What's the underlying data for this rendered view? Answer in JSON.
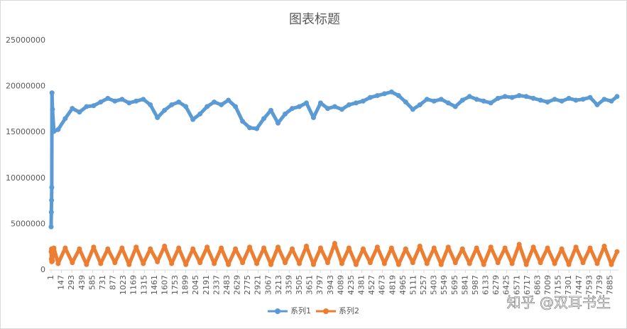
{
  "chart_data": {
    "type": "line",
    "title": "图表标题",
    "watermark": "知乎 @双耳书生",
    "legend": "bottom",
    "xlim": [
      1,
      8000
    ],
    "xticks": [
      1,
      147,
      293,
      439,
      585,
      731,
      877,
      1023,
      1169,
      1315,
      1461,
      1607,
      1753,
      1899,
      2045,
      2191,
      2337,
      2483,
      2629,
      2775,
      2921,
      3067,
      3213,
      3359,
      3505,
      3651,
      3797,
      3943,
      4089,
      4235,
      4381,
      4527,
      4673,
      4819,
      4965,
      5111,
      5257,
      5403,
      5549,
      5695,
      5841,
      5987,
      6133,
      6279,
      6425,
      6571,
      6717,
      6863,
      7009,
      7155,
      7301,
      7447,
      7593,
      7739,
      7885
    ],
    "ylim": [
      0,
      25000000
    ],
    "yticks": [
      0,
      5000000,
      10000000,
      15000000,
      20000000,
      25000000
    ],
    "x": [
      1,
      4,
      7,
      10,
      13,
      20,
      40,
      100,
      200,
      300,
      400,
      500,
      600,
      700,
      800,
      900,
      1000,
      1100,
      1200,
      1300,
      1400,
      1500,
      1600,
      1700,
      1800,
      1900,
      2000,
      2100,
      2200,
      2300,
      2400,
      2500,
      2600,
      2700,
      2800,
      2900,
      3000,
      3100,
      3200,
      3300,
      3400,
      3500,
      3600,
      3700,
      3800,
      3900,
      4000,
      4100,
      4200,
      4300,
      4400,
      4500,
      4600,
      4700,
      4800,
      4900,
      5000,
      5100,
      5200,
      5300,
      5400,
      5500,
      5600,
      5700,
      5800,
      5900,
      6000,
      6100,
      6200,
      6300,
      6400,
      6500,
      6600,
      6700,
      6800,
      6900,
      7000,
      7100,
      7200,
      7300,
      7400,
      7500,
      7600,
      7700,
      7800,
      7900,
      7980
    ],
    "series": [
      {
        "name": "系列1",
        "color": "#5b9bd5",
        "values": [
          4700000,
          6300000,
          7600000,
          9000000,
          19300000,
          17500000,
          15100000,
          15300000,
          16500000,
          17600000,
          17200000,
          17800000,
          17900000,
          18300000,
          18700000,
          18400000,
          18600000,
          18200000,
          18400000,
          18600000,
          18000000,
          16600000,
          17400000,
          18000000,
          18300000,
          17800000,
          16400000,
          17000000,
          17800000,
          18300000,
          18000000,
          18500000,
          17800000,
          16200000,
          15500000,
          15400000,
          16500000,
          17400000,
          16000000,
          17000000,
          17600000,
          17800000,
          18200000,
          16600000,
          18200000,
          17600000,
          17800000,
          17500000,
          18000000,
          18200000,
          18400000,
          18800000,
          19000000,
          19200000,
          19400000,
          19000000,
          18300000,
          17500000,
          18000000,
          18600000,
          18400000,
          18600000,
          18200000,
          17800000,
          18500000,
          18900000,
          18600000,
          18400000,
          18200000,
          18700000,
          18900000,
          18800000,
          19000000,
          18900000,
          18700000,
          18500000,
          18300000,
          18600000,
          18400000,
          18700000,
          18500000,
          18600000,
          18800000,
          18000000,
          18600000,
          18400000,
          18900000
        ]
      },
      {
        "name": "系列2",
        "color": "#ed7d31",
        "values": [
          2000000,
          1200000,
          2300000,
          900000,
          2100000,
          1000000,
          2400000,
          700000,
          2400000,
          800000,
          2300000,
          600000,
          2500000,
          700000,
          2300000,
          800000,
          2400000,
          600000,
          2500000,
          700000,
          2300000,
          900000,
          2600000,
          700000,
          2400000,
          600000,
          2300000,
          800000,
          2500000,
          700000,
          2400000,
          600000,
          2300000,
          800000,
          2500000,
          700000,
          2400000,
          600000,
          2500000,
          800000,
          2300000,
          700000,
          2600000,
          600000,
          2400000,
          800000,
          2900000,
          700000,
          2400000,
          600000,
          2300000,
          800000,
          2500000,
          700000,
          2400000,
          600000,
          2300000,
          800000,
          2600000,
          700000,
          2400000,
          600000,
          2500000,
          800000,
          2300000,
          700000,
          2400000,
          600000,
          2500000,
          800000,
          2400000,
          700000,
          2800000,
          600000,
          2500000,
          800000,
          2400000,
          700000,
          2300000,
          600000,
          2500000,
          800000,
          2400000,
          700000,
          2600000,
          600000,
          2000000
        ]
      }
    ]
  }
}
